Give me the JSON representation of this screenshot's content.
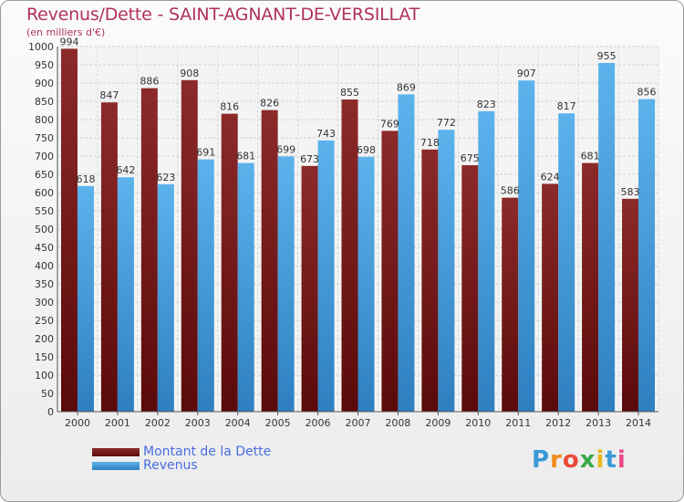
{
  "header": {
    "title": "Revenus/Dette - SAINT-AGNANT-DE-VERSILLAT",
    "subtitle": "(en milliers d'€)"
  },
  "chart_data": {
    "type": "bar",
    "categories": [
      "2000",
      "2001",
      "2002",
      "2003",
      "2004",
      "2005",
      "2006",
      "2007",
      "2008",
      "2009",
      "2010",
      "2011",
      "2012",
      "2013",
      "2014"
    ],
    "series": [
      {
        "name": "Montant de la Dette",
        "color": "#7a1a1a",
        "values": [
          994,
          847,
          886,
          908,
          816,
          826,
          673,
          855,
          769,
          718,
          675,
          586,
          624,
          681,
          583
        ]
      },
      {
        "name": "Revenus",
        "color": "#4aa3e0",
        "values": [
          618,
          642,
          623,
          691,
          681,
          699,
          743,
          698,
          869,
          772,
          823,
          907,
          817,
          955,
          856
        ]
      }
    ],
    "ylim": [
      0,
      1000
    ],
    "ytick_step": 50,
    "grid": true,
    "legend_position": "bottom-left"
  },
  "logo": {
    "letters": [
      "P",
      "r",
      "o",
      "x",
      "i",
      "t",
      "i"
    ],
    "colors": [
      "#3a9ad9",
      "#f08a1c",
      "#e84a3a",
      "#3aa84a",
      "#e8b81c",
      "#3a9ad9",
      "#e84a8a"
    ]
  }
}
